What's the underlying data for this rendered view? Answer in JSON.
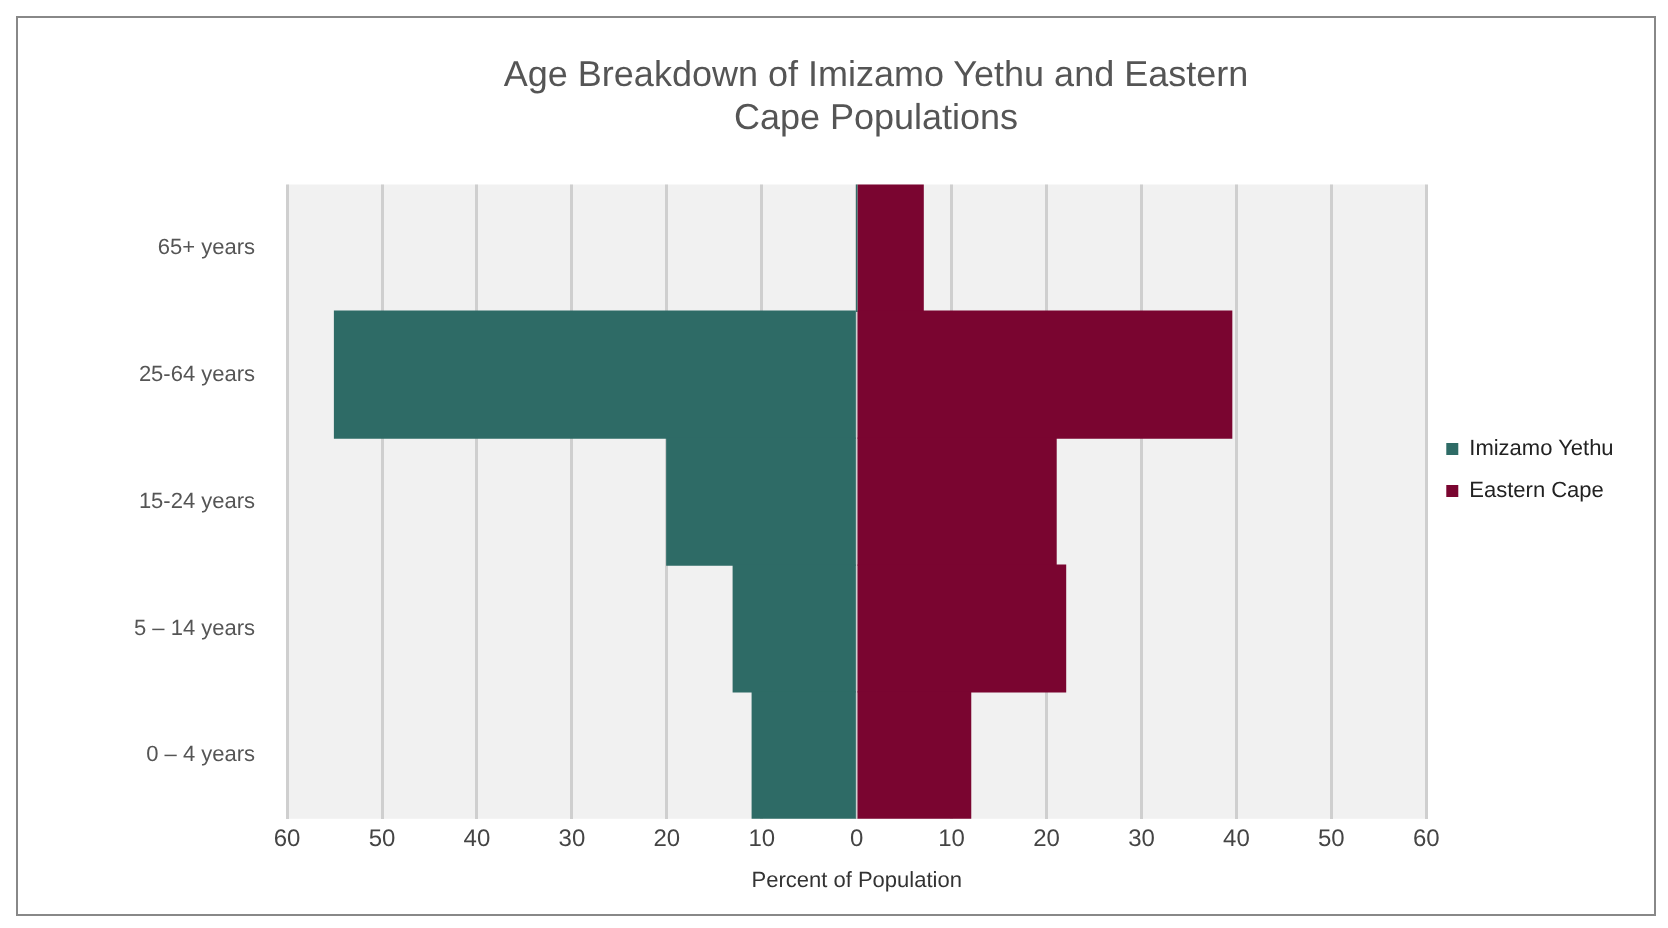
{
  "chart_data": {
    "type": "bar",
    "orientation": "horizontal",
    "stacked": true,
    "title": "Age Breakdown of Imizamo Yethu and Eastern Cape Populations",
    "xlabel": "Percent of Population",
    "categories": [
      "65+ years",
      "25-64 years",
      "15-24 years",
      "5 – 14 years",
      "0 – 4 years"
    ],
    "series": [
      {
        "name": "Imizamo Yethu",
        "color": "#2e6b66",
        "values": [
          0,
          -55,
          -20,
          -13,
          -11
        ]
      },
      {
        "name": "Eastern Cape",
        "color": "#7a0530",
        "values": [
          7,
          39.5,
          21,
          22,
          12
        ]
      }
    ],
    "xlim": [
      -60,
      60
    ],
    "xticks": [
      {
        "value": -60,
        "label": "60"
      },
      {
        "value": -50,
        "label": "50"
      },
      {
        "value": -40,
        "label": "40"
      },
      {
        "value": -30,
        "label": "30"
      },
      {
        "value": -20,
        "label": "20"
      },
      {
        "value": -10,
        "label": "10"
      },
      0,
      10,
      20,
      30,
      40,
      50,
      60
    ],
    "grid": "x",
    "legend": "right"
  }
}
